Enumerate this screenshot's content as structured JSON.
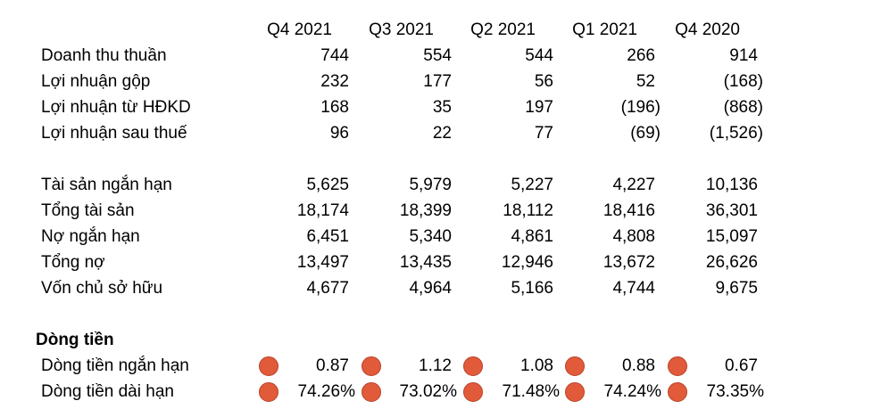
{
  "columns": [
    "Q4 2021",
    "Q3 2021",
    "Q2 2021",
    "Q1 2021",
    "Q4 2020"
  ],
  "income_rows": [
    {
      "label": "Doanh thu thuần",
      "values": [
        "744",
        "554",
        "544",
        "266",
        "914"
      ]
    },
    {
      "label": "Lợi nhuận gộp",
      "values": [
        "232",
        "177",
        "56",
        "52",
        "(168)"
      ]
    },
    {
      "label": "Lợi nhuận từ HĐKD",
      "values": [
        "168",
        "35",
        "197",
        "(196)",
        "(868)"
      ]
    },
    {
      "label": "Lợi nhuận sau thuế",
      "values": [
        "96",
        "22",
        "77",
        "(69)",
        "(1,526)"
      ]
    }
  ],
  "balance_rows": [
    {
      "label": "Tài sản ngắn hạn",
      "values": [
        "5,625",
        "5,979",
        "5,227",
        "4,227",
        "10,136"
      ]
    },
    {
      "label": "Tổng tài sản",
      "values": [
        "18,174",
        "18,399",
        "18,112",
        "18,416",
        "36,301"
      ]
    },
    {
      "label": "Nợ ngắn hạn",
      "values": [
        "6,451",
        "5,340",
        "4,861",
        "4,808",
        "15,097"
      ]
    },
    {
      "label": "Tổng nợ",
      "values": [
        "13,497",
        "13,435",
        "12,946",
        "13,672",
        "26,626"
      ]
    },
    {
      "label": "Vốn chủ sở hữu",
      "values": [
        "4,677",
        "4,964",
        "5,166",
        "4,744",
        "9,675"
      ]
    }
  ],
  "cashflow": {
    "title": "Dòng tiền",
    "indicator_color": "#e15a3a",
    "rows": [
      {
        "label": "Dòng tiền ngắn hạn",
        "values": [
          "0.87",
          "1.12",
          "1.08",
          "0.88",
          "0.67"
        ]
      },
      {
        "label": "Dòng tiền dài hạn",
        "values": [
          "74.26%",
          "73.02%",
          "71.48%",
          "74.24%",
          "73.35%"
        ]
      }
    ]
  }
}
